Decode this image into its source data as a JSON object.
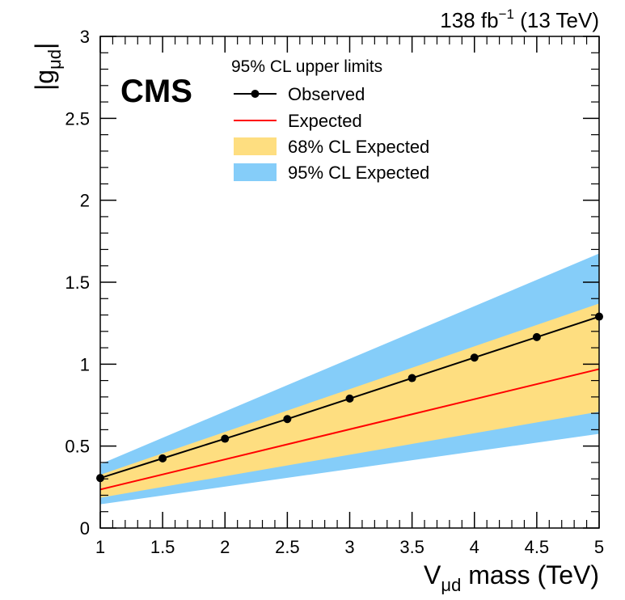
{
  "chart_data": {
    "type": "line",
    "title": "",
    "lumi_label": {
      "value": "138 fb",
      "exponent": "−1",
      "energy": " (13 TeV)"
    },
    "experiment_label": "CMS",
    "xlabel": {
      "main": "V",
      "subscript": "μd",
      "suffix": " mass (TeV)"
    },
    "ylabel": {
      "left_bar": "|",
      "main": "g",
      "subscript": "μd",
      "right_bar": "|"
    },
    "xlim": [
      1,
      5
    ],
    "ylim": [
      0,
      3
    ],
    "x_ticks": [
      1,
      1.5,
      2,
      2.5,
      3,
      3.5,
      4,
      4.5,
      5
    ],
    "x_tick_labels": [
      "1",
      "1.5",
      "2",
      "2.5",
      "3",
      "3.5",
      "4",
      "4.5",
      "5"
    ],
    "y_ticks": [
      0,
      0.5,
      1,
      1.5,
      2,
      2.5,
      3
    ],
    "y_tick_labels": [
      "0",
      "0.5",
      "1",
      "1.5",
      "2",
      "2.5",
      "3"
    ],
    "grid": false,
    "legend_position": "top-center",
    "legend_header": "95% CL upper limits",
    "x": [
      1,
      5
    ],
    "series": [
      {
        "name": "Observed",
        "kind": "line-markers",
        "color": "#000000",
        "x": [
          1,
          1.5,
          2,
          2.5,
          3,
          3.5,
          4,
          4.5,
          5
        ],
        "values": [
          0.305,
          0.425,
          0.545,
          0.665,
          0.79,
          0.915,
          1.04,
          1.165,
          1.29
        ]
      },
      {
        "name": "Expected",
        "kind": "line",
        "color": "#ff0000",
        "x": [
          1,
          5
        ],
        "values": [
          0.235,
          0.97
        ]
      },
      {
        "name": "68% CL Expected",
        "kind": "band",
        "color": "#fede80",
        "x": [
          1,
          5
        ],
        "lower": [
          0.185,
          0.71
        ],
        "upper": [
          0.325,
          1.37
        ]
      },
      {
        "name": "95% CL Expected",
        "kind": "band",
        "color": "#85cdf9",
        "x": [
          1,
          5
        ],
        "lower": [
          0.145,
          0.575
        ],
        "upper": [
          0.39,
          1.675
        ]
      }
    ]
  }
}
